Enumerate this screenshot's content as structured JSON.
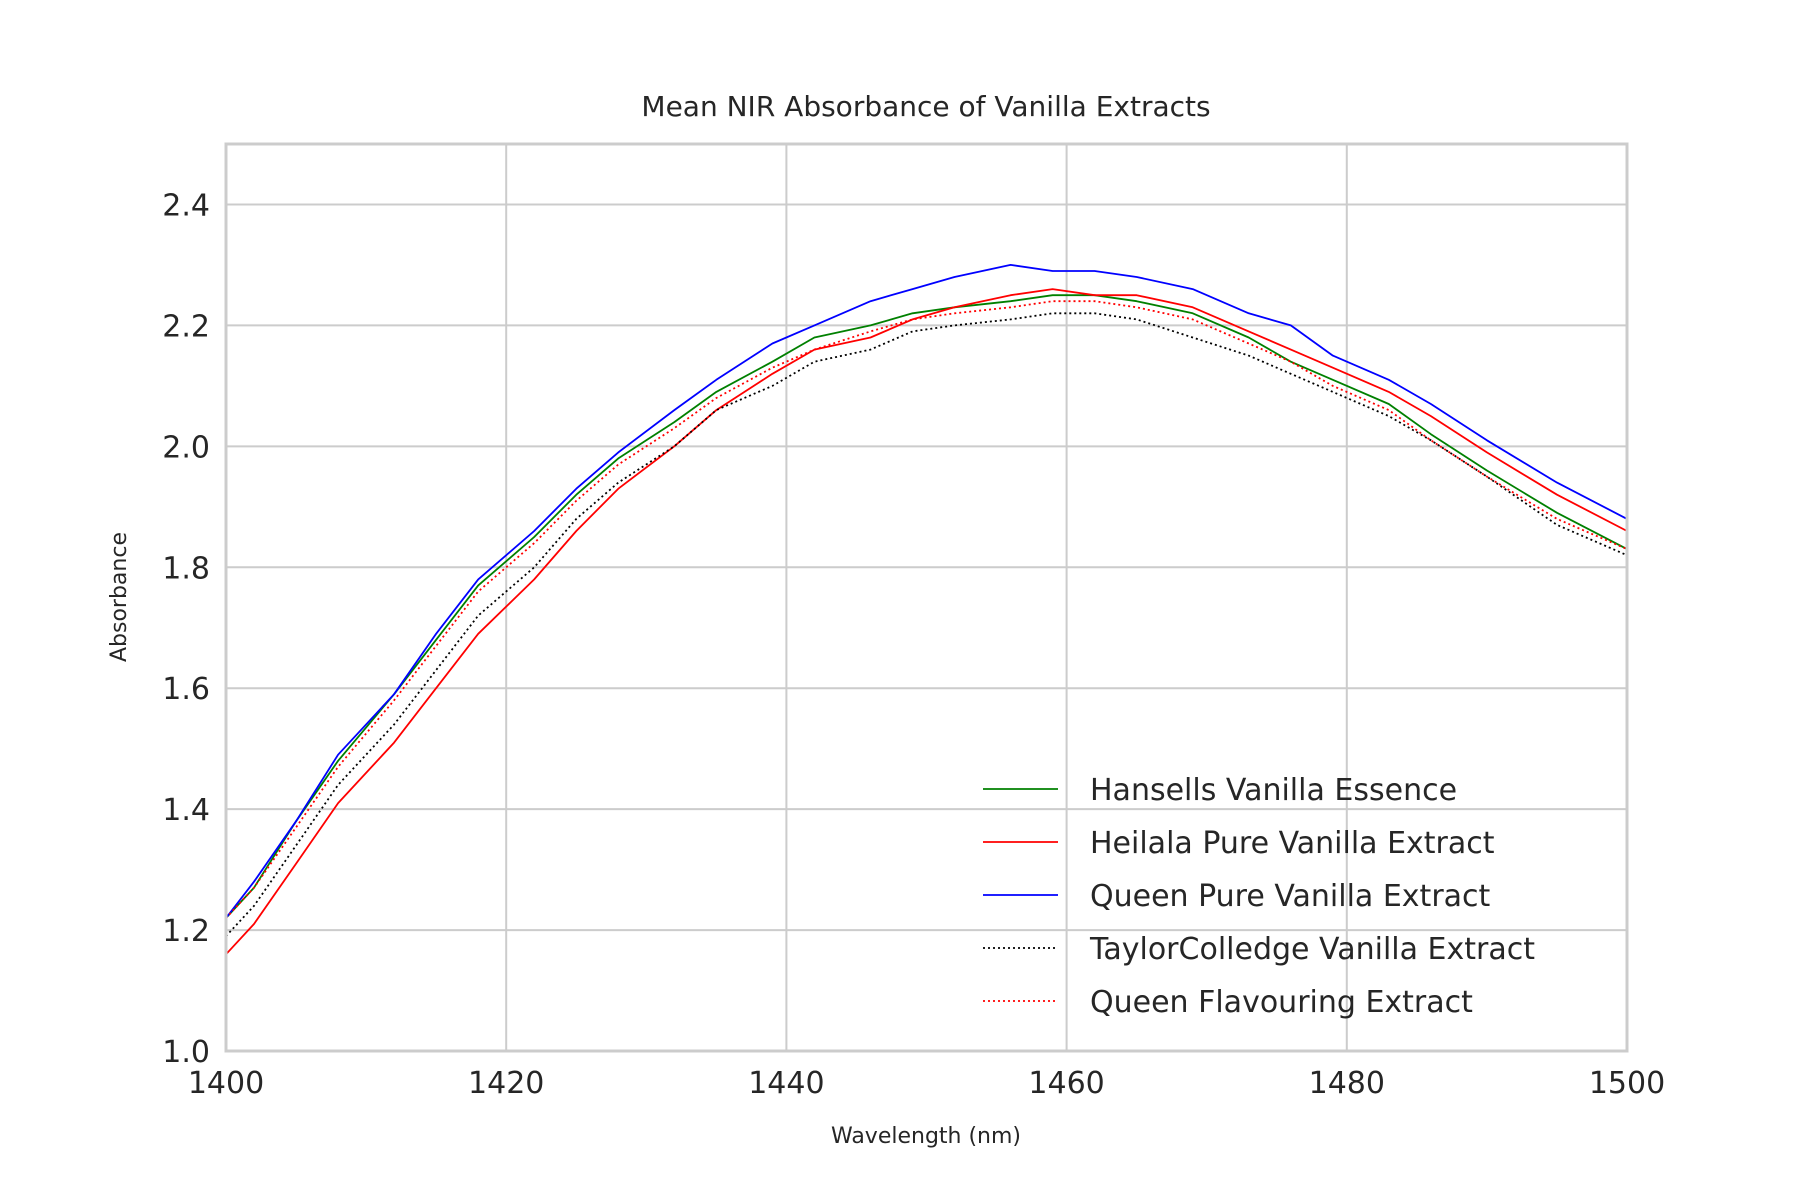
{
  "chart_data": {
    "type": "line",
    "title": "Mean NIR Absorbance of Vanilla Extracts",
    "xlabel": "Wavelength (nm)",
    "ylabel": "Absorbance",
    "xlim": [
      1400,
      1500
    ],
    "ylim": [
      1.0,
      2.5
    ],
    "xticks": [
      1400,
      1420,
      1440,
      1460,
      1480,
      1500
    ],
    "xtick_labels": [
      "1400",
      "1420",
      "1440",
      "1460",
      "1480",
      "1500"
    ],
    "yticks": [
      1.0,
      1.2,
      1.4,
      1.6,
      1.8,
      2.0,
      2.2,
      2.4
    ],
    "ytick_labels": [
      "1.0",
      "1.2",
      "1.4",
      "1.6",
      "1.8",
      "2.0",
      "2.2",
      "2.4"
    ],
    "grid": true,
    "legend_position": "lower-right",
    "x": [
      1400,
      1402,
      1405,
      1408,
      1412,
      1415,
      1418,
      1422,
      1425,
      1428,
      1432,
      1435,
      1439,
      1442,
      1446,
      1449,
      1452,
      1456,
      1459,
      1462,
      1465,
      1469,
      1473,
      1476,
      1479,
      1483,
      1486,
      1490,
      1495,
      1500
    ],
    "series": [
      {
        "name": "Hansells Vanilla Essence",
        "color": "#008000",
        "dash": "solid",
        "values": [
          1.22,
          1.27,
          1.38,
          1.48,
          1.59,
          1.68,
          1.77,
          1.85,
          1.92,
          1.98,
          2.04,
          2.09,
          2.14,
          2.18,
          2.2,
          2.22,
          2.23,
          2.24,
          2.25,
          2.25,
          2.24,
          2.22,
          2.18,
          2.14,
          2.11,
          2.07,
          2.02,
          1.96,
          1.89,
          1.83
        ]
      },
      {
        "name": "Heilala Pure Vanilla Extract",
        "color": "#ff0000",
        "dash": "solid",
        "values": [
          1.16,
          1.21,
          1.31,
          1.41,
          1.51,
          1.6,
          1.69,
          1.78,
          1.86,
          1.93,
          2.0,
          2.06,
          2.12,
          2.16,
          2.18,
          2.21,
          2.23,
          2.25,
          2.26,
          2.25,
          2.25,
          2.23,
          2.19,
          2.16,
          2.13,
          2.09,
          2.05,
          1.99,
          1.92,
          1.86
        ]
      },
      {
        "name": "Queen Pure Vanilla Extract",
        "color": "#0000ff",
        "dash": "solid",
        "values": [
          1.22,
          1.28,
          1.38,
          1.49,
          1.59,
          1.69,
          1.78,
          1.86,
          1.93,
          1.99,
          2.06,
          2.11,
          2.17,
          2.2,
          2.24,
          2.26,
          2.28,
          2.3,
          2.29,
          2.29,
          2.28,
          2.26,
          2.22,
          2.2,
          2.15,
          2.11,
          2.07,
          2.01,
          1.94,
          1.88
        ]
      },
      {
        "name": "TaylorColledge Vanilla Extract",
        "color": "#000000",
        "dash": "dotted",
        "values": [
          1.19,
          1.24,
          1.34,
          1.44,
          1.54,
          1.63,
          1.72,
          1.8,
          1.88,
          1.94,
          2.0,
          2.06,
          2.1,
          2.14,
          2.16,
          2.19,
          2.2,
          2.21,
          2.22,
          2.22,
          2.21,
          2.18,
          2.15,
          2.12,
          2.09,
          2.05,
          2.01,
          1.95,
          1.87,
          1.82
        ]
      },
      {
        "name": "Queen Flavouring Extract",
        "color": "#ff0000",
        "dash": "dotted",
        "values": [
          1.22,
          1.27,
          1.37,
          1.47,
          1.58,
          1.67,
          1.76,
          1.84,
          1.91,
          1.97,
          2.03,
          2.08,
          2.13,
          2.16,
          2.19,
          2.21,
          2.22,
          2.23,
          2.24,
          2.24,
          2.23,
          2.21,
          2.17,
          2.14,
          2.1,
          2.06,
          2.01,
          1.95,
          1.88,
          1.83
        ]
      }
    ]
  }
}
